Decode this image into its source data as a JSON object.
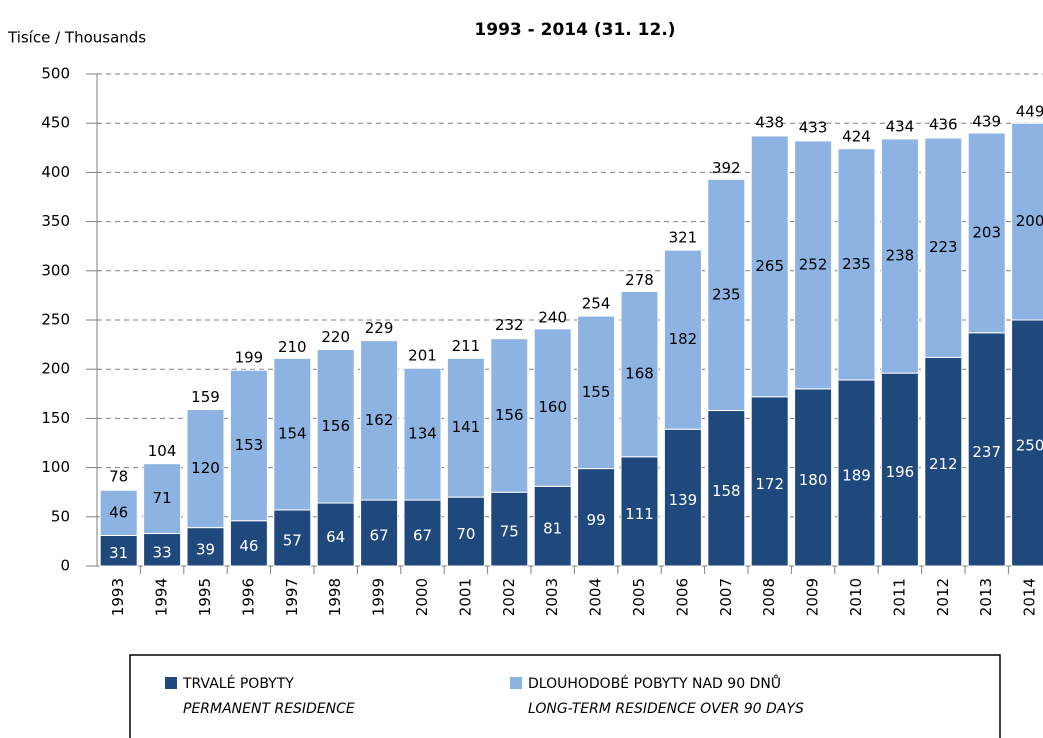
{
  "chart_data": {
    "type": "stacked_bar",
    "title": "1993 - 2014 (31. 12.)",
    "y_label": "Tisíce / Thousands",
    "categories": [
      "1993",
      "1994",
      "1995",
      "1996",
      "1997",
      "1998",
      "1999",
      "2000",
      "2001",
      "2002",
      "2003",
      "2004",
      "2005",
      "2006",
      "2007",
      "2008",
      "2009",
      "2010",
      "2011",
      "2012",
      "2013",
      "2014"
    ],
    "series": [
      {
        "name": "TRVALÉ POBYTY",
        "name_en": "PERMANENT RESIDENCE",
        "color": "#1f497d",
        "values": [
          31,
          33,
          39,
          46,
          57,
          64,
          67,
          67,
          70,
          75,
          81,
          99,
          111,
          139,
          158,
          172,
          180,
          189,
          196,
          212,
          237,
          250
        ]
      },
      {
        "name": "DLOUHODOBÉ POBYTY NAD 90 DNŮ",
        "name_en": "LONG-TERM RESIDENCE OVER 90 DAYS",
        "color": "#8db3e2",
        "values": [
          46,
          71,
          120,
          153,
          154,
          156,
          162,
          134,
          141,
          156,
          160,
          155,
          168,
          182,
          235,
          265,
          252,
          235,
          238,
          223,
          203,
          200
        ]
      }
    ],
    "totals": [
      78,
      104,
      159,
      199,
      210,
      220,
      229,
      201,
      211,
      232,
      240,
      254,
      278,
      321,
      392,
      438,
      433,
      424,
      434,
      436,
      439,
      449
    ],
    "ylim": [
      0,
      500
    ],
    "yticks": [
      0,
      50,
      100,
      150,
      200,
      250,
      300,
      350,
      400,
      450,
      500
    ],
    "grid": true
  }
}
